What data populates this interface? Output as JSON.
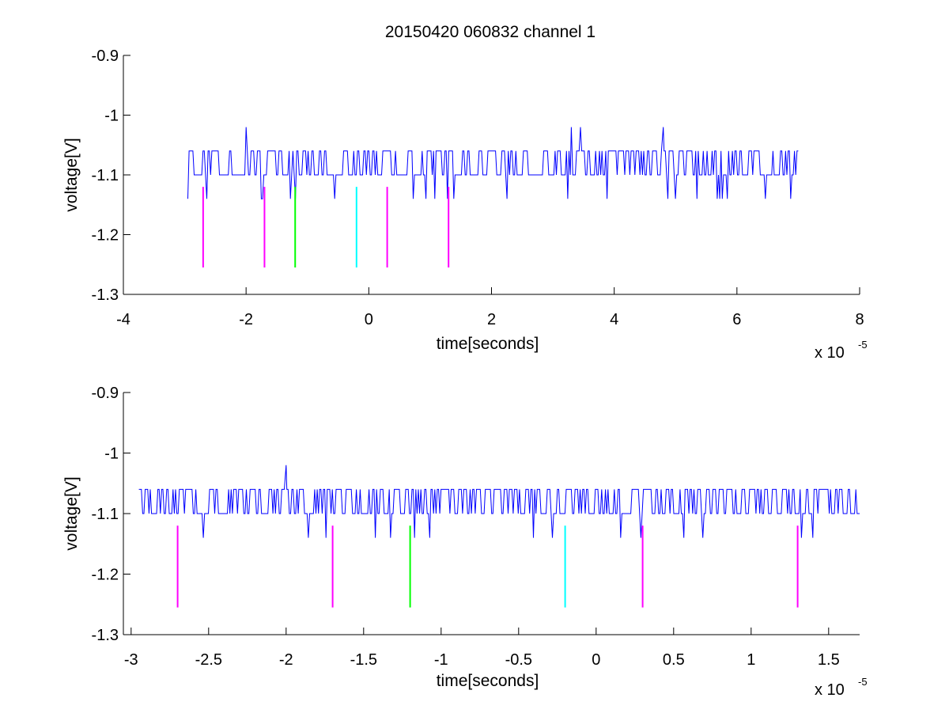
{
  "figure_title": "20150420 060832 channel 1",
  "colors": {
    "trace": "#0000ff",
    "marker_magenta": "#ff00ff",
    "marker_green": "#00ff00",
    "marker_cyan": "#00ffff",
    "axes": "#000000"
  },
  "chart_data": [
    {
      "type": "line",
      "title": "20150420 060832 channel 1",
      "xlabel": "time[seconds]",
      "ylabel": "voltage[V]",
      "x_exponent_label": "x 10",
      "x_exponent": "-5",
      "x_scale_factor": 1e-05,
      "xlim": [
        -4,
        8
      ],
      "ylim": [
        -1.3,
        -0.9
      ],
      "y_reversed": true,
      "xticks": [
        -4,
        -2,
        0,
        2,
        4,
        6,
        8
      ],
      "xtick_labels": [
        "-4",
        "-2",
        "0",
        "2",
        "4",
        "6",
        "8"
      ],
      "yticks": [
        -0.9,
        -1,
        -1.1,
        -1.2,
        -1.3
      ],
      "ytick_labels": [
        "-0.9",
        "-1",
        "-1.1",
        "-1.2",
        "-1.3"
      ],
      "grid": false,
      "series": [
        {
          "style": "noisy-trace",
          "x_range": [
            -2.95,
            7.0
          ],
          "baseline": -1.1,
          "high_level": -1.06,
          "low_level": -1.14,
          "spikes": [
            {
              "x": -2.0,
              "y": -1.02
            },
            {
              "x": 3.3,
              "y": -1.02
            },
            {
              "x": 3.45,
              "y": -1.02
            },
            {
              "x": 4.8,
              "y": -1.02
            }
          ]
        }
      ],
      "markers": [
        {
          "x": -2.7,
          "y_top": -1.12,
          "y_bottom": -1.255,
          "color": "magenta"
        },
        {
          "x": -1.7,
          "y_top": -1.12,
          "y_bottom": -1.255,
          "color": "magenta"
        },
        {
          "x": -1.2,
          "y_top": -1.12,
          "y_bottom": -1.255,
          "color": "green"
        },
        {
          "x": -0.2,
          "y_top": -1.12,
          "y_bottom": -1.255,
          "color": "cyan"
        },
        {
          "x": 0.3,
          "y_top": -1.12,
          "y_bottom": -1.255,
          "color": "magenta"
        },
        {
          "x": 1.3,
          "y_top": -1.12,
          "y_bottom": -1.255,
          "color": "magenta"
        }
      ]
    },
    {
      "type": "line",
      "title": "",
      "xlabel": "time[seconds]",
      "ylabel": "voltage[V]",
      "x_exponent_label": "x 10",
      "x_exponent": "-5",
      "x_scale_factor": 1e-05,
      "xlim": [
        -3.05,
        1.7
      ],
      "ylim": [
        -1.3,
        -0.9
      ],
      "y_reversed": true,
      "xticks": [
        -3,
        -2.5,
        -2,
        -1.5,
        -1,
        -0.5,
        0,
        0.5,
        1,
        1.5
      ],
      "xtick_labels": [
        "-3",
        "-2.5",
        "-2",
        "-1.5",
        "-1",
        "-0.5",
        "0",
        "0.5",
        "1",
        "1.5"
      ],
      "yticks": [
        -0.9,
        -1,
        -1.1,
        -1.2,
        -1.3
      ],
      "ytick_labels": [
        "-0.9",
        "-1",
        "-1.1",
        "-1.2",
        "-1.3"
      ],
      "grid": false,
      "series": [
        {
          "style": "noisy-trace",
          "x_range": [
            -2.95,
            1.7
          ],
          "baseline": -1.1,
          "high_level": -1.06,
          "low_level": -1.14,
          "spikes": [
            {
              "x": -2.0,
              "y": -1.02
            }
          ]
        }
      ],
      "markers": [
        {
          "x": -2.7,
          "y_top": -1.12,
          "y_bottom": -1.255,
          "color": "magenta"
        },
        {
          "x": -1.7,
          "y_top": -1.12,
          "y_bottom": -1.255,
          "color": "magenta"
        },
        {
          "x": -1.2,
          "y_top": -1.12,
          "y_bottom": -1.255,
          "color": "green"
        },
        {
          "x": -0.2,
          "y_top": -1.12,
          "y_bottom": -1.255,
          "color": "cyan"
        },
        {
          "x": 0.3,
          "y_top": -1.12,
          "y_bottom": -1.255,
          "color": "magenta"
        },
        {
          "x": 1.3,
          "y_top": -1.12,
          "y_bottom": -1.255,
          "color": "magenta"
        }
      ]
    }
  ]
}
